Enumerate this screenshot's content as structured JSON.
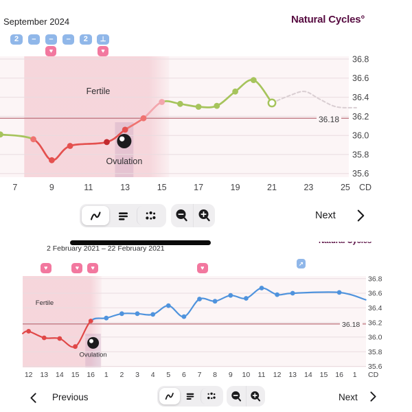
{
  "branding": {
    "logo_text": "Natural Cycles°"
  },
  "toolbar1": {
    "next_label": "Next"
  },
  "toolbar2": {
    "previous_label": "Previous",
    "next_label": "Next"
  },
  "colors": {
    "brand": "#570c41",
    "red": "#e4514f",
    "dark_red": "#c22a2e",
    "salmon": "#ef7370",
    "pink": "#f3a6ad",
    "green": "#a6c45c",
    "red2": "#e04747",
    "blue": "#4f93dd",
    "prediction": "#d9ced2",
    "coverline": "#c4818a",
    "chart_bg": "#fcf5f6",
    "fertile": "#f2c3cb",
    "ovulation_band": "#a87fad",
    "grid": "#e9dce0",
    "badge_blue": "#90b7e9",
    "badge_pink": "#f2789f",
    "marker_black": "#1b1b1d",
    "tick_text": "#434345",
    "label_text": "#2e2e30"
  },
  "chart_data": [
    {
      "type": "line",
      "title": "September 2024",
      "x_axis_unit": "CD",
      "x_ticks": [
        "7",
        "9",
        "11",
        "13",
        "15",
        "17",
        "19",
        "21",
        "23",
        "25"
      ],
      "y_ticks": [
        "36.8",
        "36.6",
        "36.4",
        "36.2",
        "36.0",
        "35.8",
        "35.6"
      ],
      "ylim": [
        35.6,
        36.8
      ],
      "grid": true,
      "legend": "none",
      "coverline": {
        "value": 36.18,
        "label": "36.18"
      },
      "fertile_window": {
        "label": "Fertile",
        "start_day": 7.5,
        "end_day": 15.4
      },
      "ovulation": {
        "label": "Ovulation",
        "day": 13,
        "marker_day": 12.95,
        "marker_temp": 35.94
      },
      "series": [
        {
          "name": "temperature",
          "points": [
            {
              "day": 6.2,
              "temp": 36.01,
              "tone": "green",
              "seg": "green"
            },
            {
              "day": 8,
              "temp": 35.96,
              "tone": "salmon",
              "seg": "red"
            },
            {
              "day": 9,
              "temp": 35.74,
              "tone": "red",
              "seg": "red"
            },
            {
              "day": 10,
              "temp": 35.89,
              "tone": "red",
              "seg": "red"
            },
            {
              "day": 12,
              "temp": 35.93,
              "tone": "dark_red",
              "seg": "red"
            },
            {
              "day": 13,
              "temp": 36.06,
              "tone": "red",
              "seg": "salmon"
            },
            {
              "day": 14,
              "temp": 36.18,
              "tone": "salmon",
              "seg": "pink"
            },
            {
              "day": 15,
              "temp": 36.35,
              "tone": "pink",
              "seg": "green"
            },
            {
              "day": 16,
              "temp": 36.33,
              "tone": "green",
              "seg": "green"
            },
            {
              "day": 17,
              "temp": 36.3,
              "tone": "green",
              "seg": "green"
            },
            {
              "day": 18,
              "temp": 36.31,
              "tone": "green",
              "seg": "green"
            },
            {
              "day": 19,
              "temp": 36.46,
              "tone": "green",
              "seg": "green"
            },
            {
              "day": 20,
              "temp": 36.58,
              "tone": "green",
              "seg": "green"
            },
            {
              "day": 21,
              "temp": 36.34,
              "tone": "green",
              "open": true
            }
          ]
        },
        {
          "name": "prediction",
          "style": "dashed",
          "points": [
            {
              "day": 21,
              "temp": 36.34
            },
            {
              "day": 22,
              "temp": 36.42
            },
            {
              "day": 22.8,
              "temp": 36.46
            },
            {
              "day": 23.6,
              "temp": 36.38
            },
            {
              "day": 24.5,
              "temp": 36.3
            },
            {
              "day": 25.6,
              "temp": 36.29
            }
          ]
        }
      ],
      "logged_days": [
        {
          "day": 7,
          "badge": "2"
        },
        {
          "day": 8,
          "badge": "–"
        },
        {
          "day": 9,
          "badge": "–",
          "heart": true
        },
        {
          "day": 10,
          "badge": "–"
        },
        {
          "day": 11,
          "badge": "2"
        },
        {
          "day": 12,
          "badge_icon": "lh-test-icon",
          "heart": true
        }
      ]
    },
    {
      "type": "line",
      "title": "2 February 2021 – 22 February 2021",
      "x_axis_unit": "CD",
      "x_ticks": [
        "12",
        "13",
        "14",
        "15",
        "16",
        "1",
        "2",
        "3",
        "4",
        "5",
        "6",
        "7",
        "8",
        "9",
        "10",
        "11",
        "12",
        "13",
        "14",
        "15",
        "16",
        "1"
      ],
      "y_ticks": [
        "36.8",
        "36.6",
        "36.4",
        "36.2",
        "36.0",
        "35.8",
        "35.6"
      ],
      "ylim": [
        35.6,
        36.8
      ],
      "grid": true,
      "legend": "none",
      "coverline": {
        "value": 36.18,
        "label": "36.18"
      },
      "fertile_window": {
        "label": "Fertile",
        "start_index": -0.38,
        "end_index": 4.7
      },
      "ovulation": {
        "label": "Ovulation",
        "day_label": "16",
        "marker_index": 4.15,
        "marker_temp": 35.92
      },
      "series": [
        {
          "name": "temperature",
          "points": [
            {
              "i": -0.38,
              "temp": 36.05,
              "tone": "red2",
              "seg": "red2",
              "edge": true
            },
            {
              "i": 0,
              "day": "12",
              "temp": 36.08,
              "tone": "red2",
              "seg": "red2"
            },
            {
              "i": 1,
              "day": "13",
              "temp": 35.99,
              "tone": "red2",
              "seg": "red2"
            },
            {
              "i": 2,
              "day": "14",
              "temp": 35.98,
              "tone": "red2",
              "seg": "red2"
            },
            {
              "i": 3,
              "day": "15",
              "temp": 35.87,
              "tone": "red2",
              "seg": "red2"
            },
            {
              "i": 4,
              "day": "16",
              "temp": 36.22,
              "tone": "red2",
              "seg": "blue"
            },
            {
              "i": 5,
              "day": "1",
              "temp": 36.26,
              "tone": "blue",
              "seg": "blue"
            },
            {
              "i": 6,
              "day": "2",
              "temp": 36.32,
              "tone": "blue",
              "seg": "blue"
            },
            {
              "i": 7,
              "day": "3",
              "temp": 36.32,
              "tone": "blue",
              "seg": "blue"
            },
            {
              "i": 8,
              "day": "4",
              "temp": 36.31,
              "tone": "blue",
              "seg": "blue"
            },
            {
              "i": 9,
              "day": "5",
              "temp": 36.43,
              "tone": "blue",
              "seg": "blue"
            },
            {
              "i": 10,
              "day": "6",
              "temp": 36.28,
              "tone": "blue",
              "seg": "blue"
            },
            {
              "i": 11,
              "day": "7",
              "temp": 36.52,
              "tone": "blue",
              "seg": "blue"
            },
            {
              "i": 12,
              "day": "8",
              "temp": 36.49,
              "tone": "blue",
              "seg": "blue"
            },
            {
              "i": 13,
              "day": "9",
              "temp": 36.57,
              "tone": "blue",
              "seg": "blue"
            },
            {
              "i": 14,
              "day": "10",
              "temp": 36.53,
              "tone": "blue",
              "seg": "blue"
            },
            {
              "i": 15,
              "day": "11",
              "temp": 36.67,
              "tone": "blue",
              "seg": "blue"
            },
            {
              "i": 16,
              "day": "12",
              "temp": 36.58,
              "tone": "blue",
              "seg": "blue"
            },
            {
              "i": 17,
              "day": "13",
              "temp": 36.6,
              "tone": "blue",
              "seg": "blue"
            },
            {
              "i": 20,
              "day": "16",
              "temp": 36.61,
              "tone": "blue",
              "seg": "blue"
            },
            {
              "i": 21.7,
              "day": "1",
              "temp": 36.51,
              "tone": "blue",
              "edge": true
            }
          ]
        }
      ],
      "logged_days": [
        {
          "i": 1,
          "day": "13",
          "heart": true
        },
        {
          "i": 3,
          "day": "15",
          "heart": true
        },
        {
          "i": 4,
          "day": "16",
          "heart": true
        },
        {
          "i": 11,
          "day": "7",
          "heart": true
        },
        {
          "i": 17.3,
          "day": "13",
          "badge_icon": "link-out-icon"
        }
      ]
    }
  ]
}
